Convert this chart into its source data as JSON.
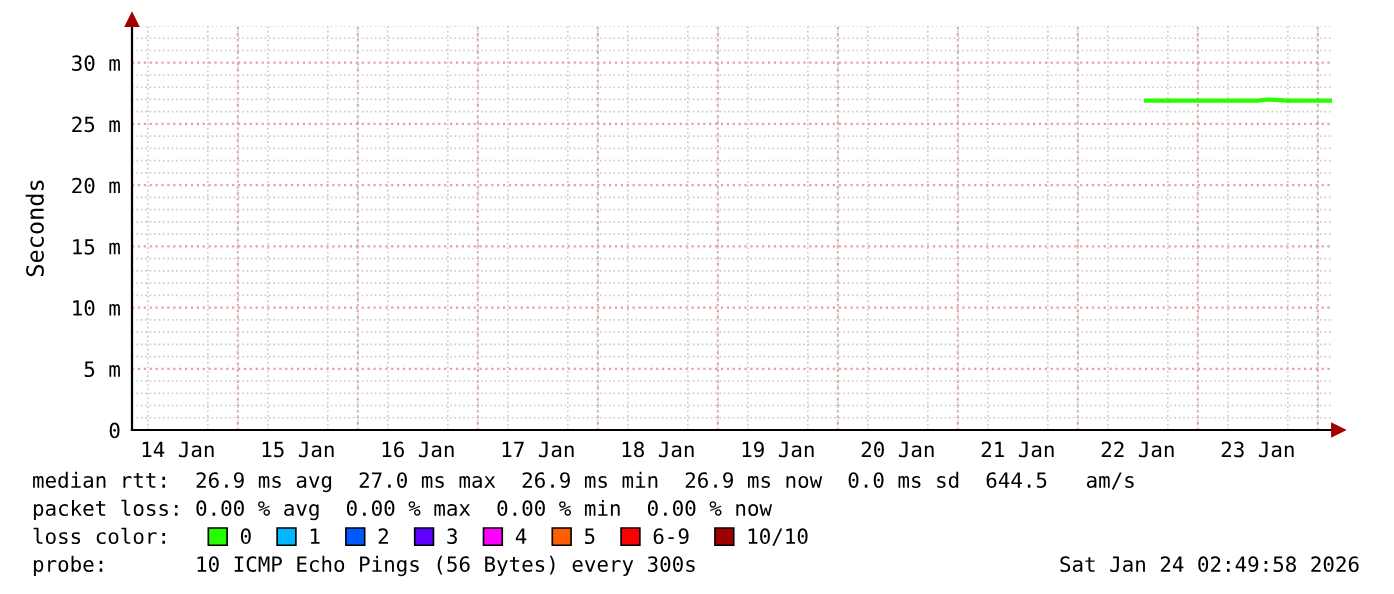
{
  "chart_data": {
    "type": "line",
    "ylabel": "Seconds",
    "legend_title": "loss color:",
    "xlim": [
      "2026-01-14T02:50",
      "2026-01-24T02:50"
    ],
    "xticks": [
      {
        "value": "2026-01-14T12:00",
        "label": "14 Jan"
      },
      {
        "value": "2026-01-15T12:00",
        "label": "15 Jan"
      },
      {
        "value": "2026-01-16T12:00",
        "label": "16 Jan"
      },
      {
        "value": "2026-01-17T12:00",
        "label": "17 Jan"
      },
      {
        "value": "2026-01-18T12:00",
        "label": "18 Jan"
      },
      {
        "value": "2026-01-19T12:00",
        "label": "19 Jan"
      },
      {
        "value": "2026-01-20T12:00",
        "label": "20 Jan"
      },
      {
        "value": "2026-01-21T12:00",
        "label": "21 Jan"
      },
      {
        "value": "2026-01-22T12:00",
        "label": "22 Jan"
      },
      {
        "value": "2026-01-23T12:00",
        "label": "23 Jan"
      }
    ],
    "ylim": [
      0,
      33
    ],
    "yticks": [
      0,
      {
        "value": 5,
        "label": "5 m"
      },
      {
        "value": 10,
        "label": "10 m"
      },
      {
        "value": 15,
        "label": "15 m"
      },
      {
        "value": 20,
        "label": "20 m"
      },
      {
        "value": 25,
        "label": "25 m"
      },
      {
        "value": 30,
        "label": "30 m"
      }
    ],
    "grid": true,
    "legend": "bottom",
    "x": [
      "2026-01-22T13:40",
      "2026-01-22T18:00",
      "2026-01-23T00:00",
      "2026-01-23T06:00",
      "2026-01-23T12:00",
      "2026-01-23T14:00",
      "2026-01-23T18:00",
      "2026-01-24T00:00",
      "2026-01-24T02:45"
    ],
    "series": [
      {
        "name": "0",
        "color": "#26ff00",
        "values": [
          26.9,
          26.9,
          26.9,
          26.9,
          26.9,
          27.0,
          26.9,
          26.9,
          26.9
        ]
      },
      {
        "name": "1",
        "color": "#00b8ff",
        "values": [
          null,
          null,
          null,
          null,
          null,
          null,
          null,
          null,
          null
        ]
      },
      {
        "name": "2",
        "color": "#0059ff",
        "values": [
          null,
          null,
          null,
          null,
          null,
          null,
          null,
          null,
          null
        ]
      },
      {
        "name": "3",
        "color": "#5e00ff",
        "values": [
          null,
          null,
          null,
          null,
          null,
          null,
          null,
          null,
          null
        ]
      },
      {
        "name": "4",
        "color": "#ff00ff",
        "values": [
          null,
          null,
          null,
          null,
          null,
          null,
          null,
          null,
          null
        ]
      },
      {
        "name": "5",
        "color": "#ff5e00",
        "values": [
          null,
          null,
          null,
          null,
          null,
          null,
          null,
          null,
          null
        ]
      },
      {
        "name": "6-9",
        "color": "#ff0000",
        "values": [
          null,
          null,
          null,
          null,
          null,
          null,
          null,
          null,
          null
        ]
      },
      {
        "name": "10/10",
        "color": "#a10000",
        "values": [
          null,
          null,
          null,
          null,
          null,
          null,
          null,
          null,
          null
        ]
      }
    ],
    "annotations": [
      "median rtt:  26.9 ms avg  27.0 ms max  26.9 ms min  26.9 ms now  0.0 ms sd  644.5   am/s",
      "packet loss: 0.00 % avg  0.00 % max  0.00 % min  0.00 % now",
      "probe:       10 ICMP Echo Pings (56 Bytes) every 300s",
      "Sat Jan 24 02:49:58 2026"
    ]
  }
}
